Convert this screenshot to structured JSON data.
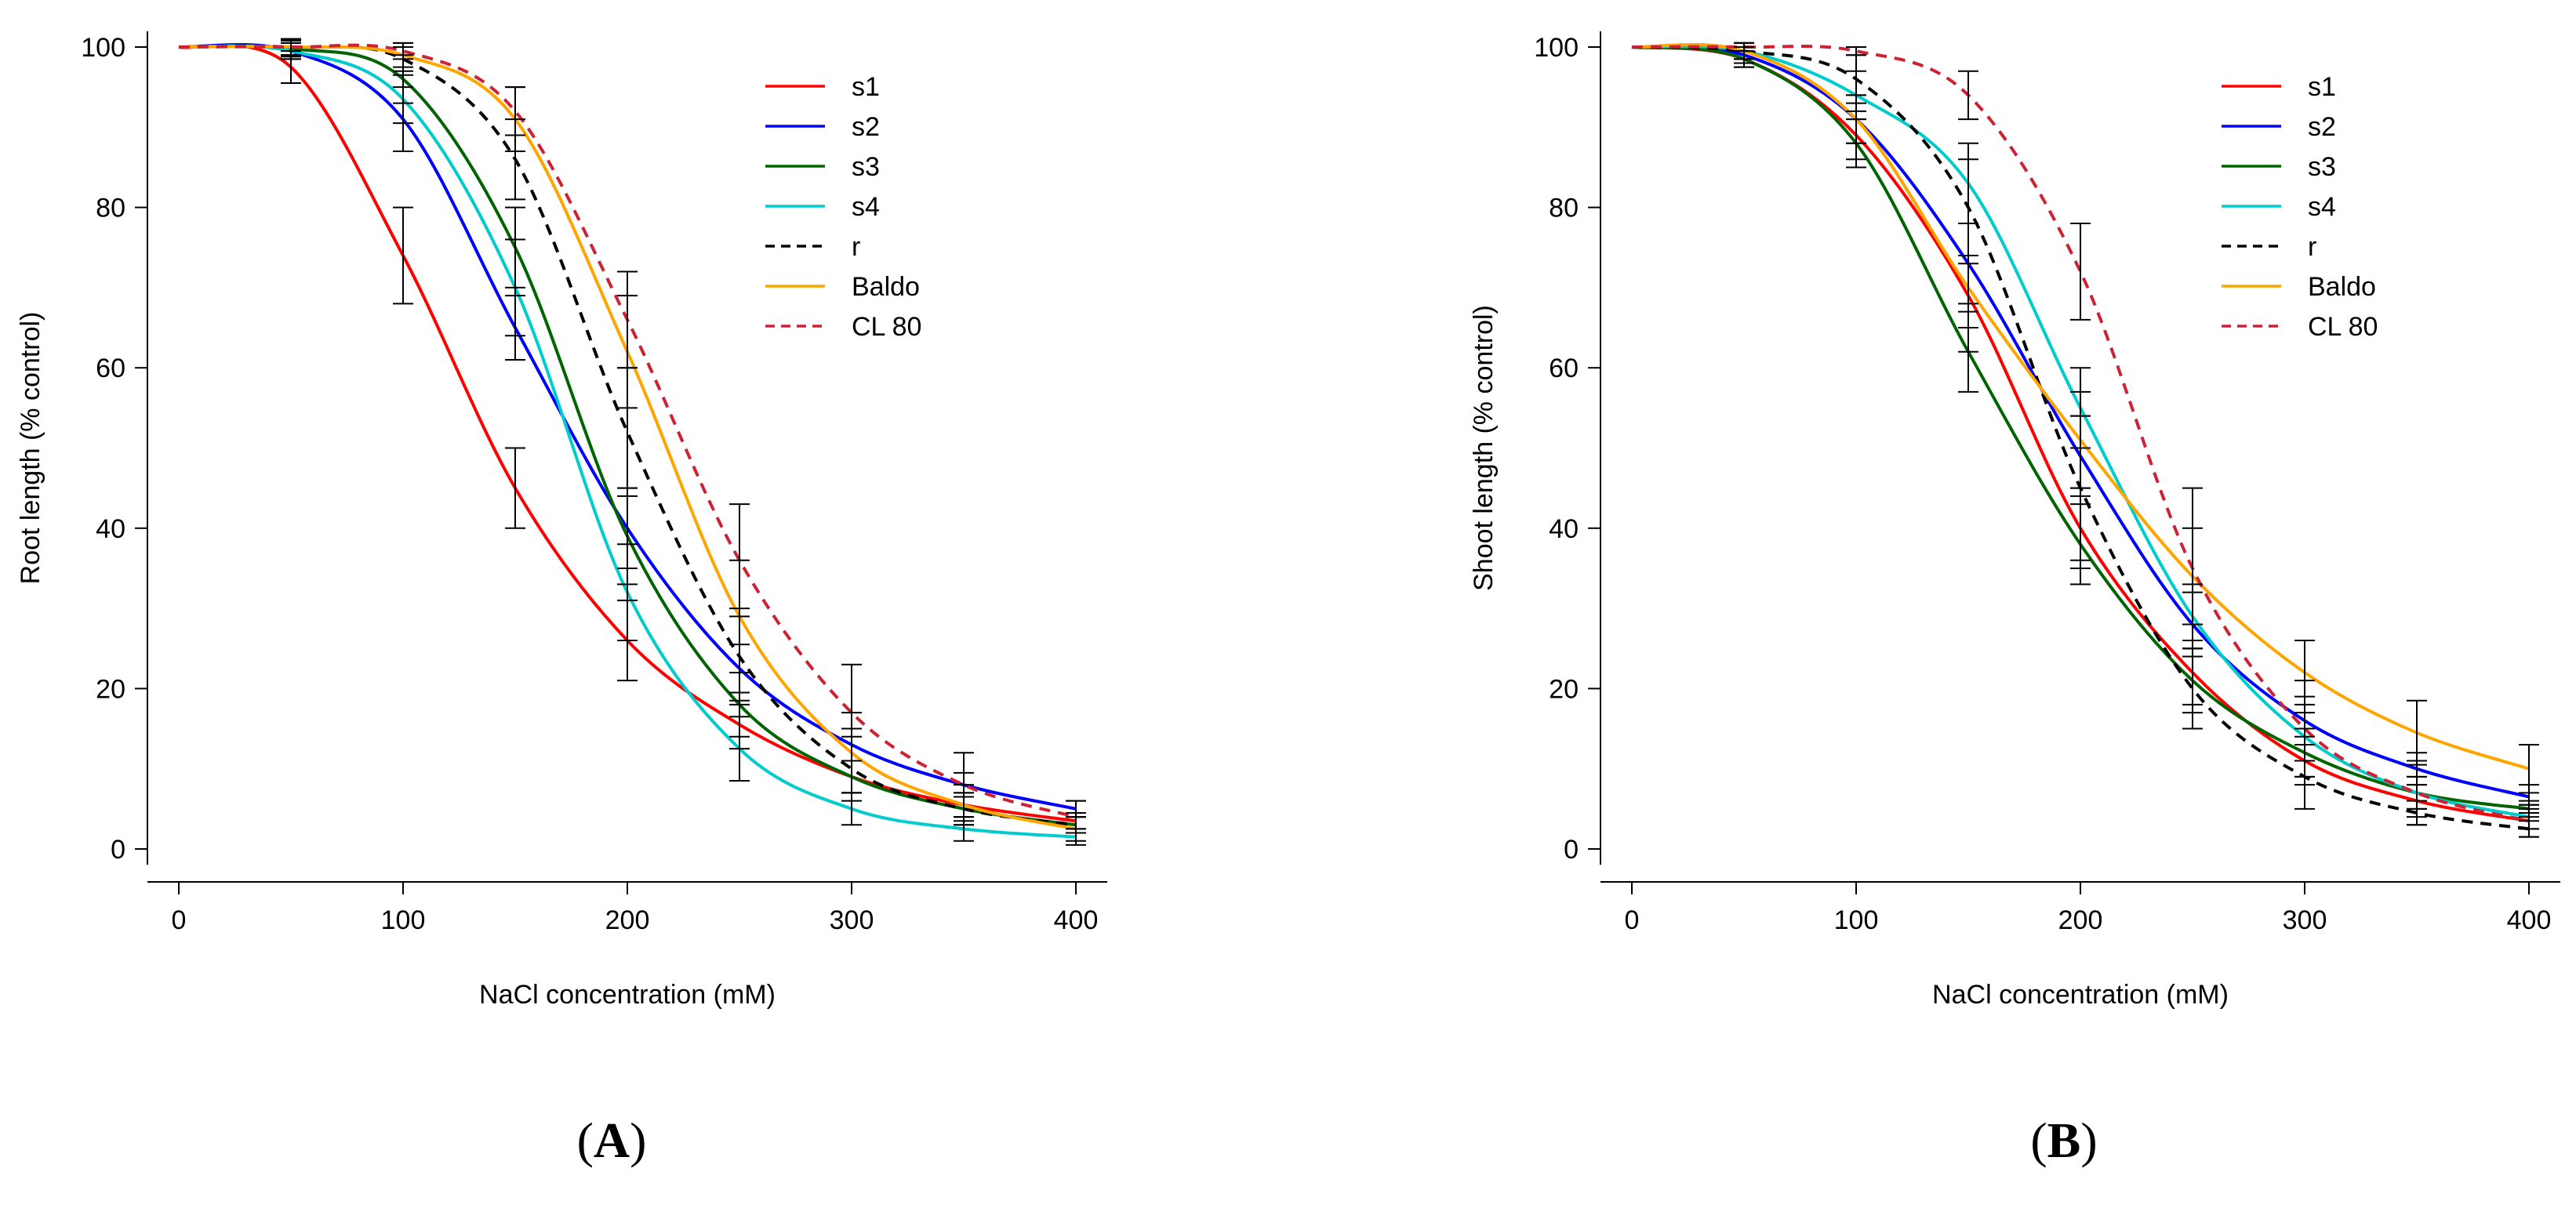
{
  "figure": {
    "panels": [
      {
        "id": "A",
        "label_prefix": "(",
        "label_letter": "A",
        "label_suffix": ")"
      },
      {
        "id": "B",
        "label_prefix": "(",
        "label_letter": "B",
        "label_suffix": ")"
      }
    ]
  },
  "chart_data": [
    {
      "type": "line",
      "panel": "A",
      "title": "",
      "xlabel": "NaCl concentration (mM)",
      "ylabel": "Root length (% control)",
      "xlim": [
        0,
        400
      ],
      "ylim": [
        0,
        100
      ],
      "xticks": [
        0,
        100,
        200,
        300,
        400
      ],
      "yticks": [
        0,
        20,
        40,
        60,
        80,
        100
      ],
      "grid": false,
      "legend_position": "top-right",
      "x": [
        0,
        50,
        100,
        150,
        200,
        250,
        300,
        350,
        400
      ],
      "series": [
        {
          "name": "s1",
          "color": "#ff0000",
          "dash": "solid",
          "values": [
            100,
            97.5,
            74,
            45,
            26,
            15.5,
            9,
            5.5,
            3.5
          ],
          "errors": [
            0,
            2,
            6,
            5,
            5,
            3,
            2,
            1.5,
            1
          ]
        },
        {
          "name": "s2",
          "color": "#0000ff",
          "dash": "solid",
          "values": [
            100,
            99.5,
            91,
            65,
            40,
            22.5,
            13,
            8,
            5
          ],
          "errors": [
            0,
            1,
            4,
            4,
            5,
            3,
            2,
            1.5,
            1
          ]
        },
        {
          "name": "s3",
          "color": "#006400",
          "dash": "solid",
          "values": [
            100,
            99.8,
            96,
            75,
            39,
            18,
            9,
            5,
            3
          ],
          "errors": [
            0,
            1,
            3,
            5,
            6,
            4,
            2,
            1.5,
            1
          ]
        },
        {
          "name": "s4",
          "color": "#00cccc",
          "dash": "solid",
          "values": [
            100,
            99.5,
            93.5,
            70,
            32,
            12.5,
            5,
            2.5,
            1.5
          ],
          "errors": [
            0,
            1,
            3,
            6,
            6,
            4,
            2,
            1.5,
            1
          ]
        },
        {
          "name": "r",
          "color": "#000000",
          "dash": "dashed",
          "values": [
            100,
            100,
            98.5,
            86,
            52,
            24,
            10,
            5,
            3
          ],
          "errors": [
            0,
            1,
            1.5,
            5,
            8,
            6,
            4,
            2,
            1
          ]
        },
        {
          "name": "Baldo",
          "color": "#ffa500",
          "dash": "solid",
          "values": [
            100,
            100,
            99,
            91,
            62,
            29,
            12,
            5.5,
            2.5
          ],
          "errors": [
            0,
            1,
            1.5,
            4,
            7,
            7,
            5,
            2.5,
            1.5
          ]
        },
        {
          "name": "CL 80",
          "color": "#cc2233",
          "dash": "dashed",
          "values": [
            100,
            100,
            99.5,
            92,
            66,
            36,
            17,
            8,
            4
          ],
          "errors": [
            0,
            1,
            1,
            3,
            6,
            7,
            6,
            4,
            2
          ]
        }
      ]
    },
    {
      "type": "line",
      "panel": "B",
      "title": "",
      "xlabel": "NaCl concentration (mM)",
      "ylabel": "Shoot length (% control)",
      "xlim": [
        0,
        400
      ],
      "ylim": [
        0,
        100
      ],
      "xticks": [
        0,
        100,
        200,
        300,
        400
      ],
      "yticks": [
        0,
        20,
        40,
        60,
        80,
        100
      ],
      "grid": false,
      "legend_position": "top-right",
      "x": [
        0,
        50,
        100,
        150,
        200,
        250,
        300,
        350,
        400
      ],
      "series": [
        {
          "name": "s1",
          "color": "#ff0000",
          "dash": "solid",
          "values": [
            100,
            98.5,
            89,
            69,
            40,
            22,
            11,
            6,
            3.5
          ],
          "errors": [
            0,
            1,
            3,
            4,
            5,
            4,
            3,
            2,
            1
          ]
        },
        {
          "name": "s2",
          "color": "#0000ff",
          "dash": "solid",
          "values": [
            100,
            99,
            91,
            73,
            49,
            28,
            16,
            10,
            6.5
          ],
          "errors": [
            0,
            1,
            3,
            5,
            5,
            4,
            3,
            2,
            1.5
          ]
        },
        {
          "name": "s3",
          "color": "#006400",
          "dash": "solid",
          "values": [
            100,
            98.5,
            88,
            62,
            38,
            21,
            12,
            7,
            5
          ],
          "errors": [
            0,
            1,
            3,
            5,
            5,
            4,
            3,
            2,
            1
          ]
        },
        {
          "name": "s4",
          "color": "#00cccc",
          "dash": "solid",
          "values": [
            100,
            99.5,
            94,
            83,
            55,
            29,
            14,
            7,
            4
          ],
          "errors": [
            0,
            1,
            3,
            5,
            5,
            4,
            3,
            2,
            1.5
          ]
        },
        {
          "name": "r",
          "color": "#000000",
          "dash": "dashed",
          "values": [
            100,
            99.5,
            96,
            80,
            45,
            20,
            9,
            4.5,
            2.5
          ],
          "errors": [
            0,
            1,
            3,
            6,
            9,
            5,
            4,
            1.5,
            1
          ]
        },
        {
          "name": "Baldo",
          "color": "#ffa500",
          "dash": "solid",
          "values": [
            100,
            99.5,
            91,
            70,
            51,
            34,
            22,
            14.5,
            10
          ],
          "errors": [
            0,
            1,
            3,
            8,
            6,
            6,
            4,
            4,
            3
          ]
        },
        {
          "name": "CL 80",
          "color": "#cc2233",
          "dash": "dashed",
          "values": [
            100,
            100,
            99.5,
            94,
            72,
            35,
            15,
            7,
            3.5
          ],
          "errors": [
            0,
            0.5,
            0.5,
            3,
            6,
            10,
            6,
            4,
            2
          ]
        }
      ]
    }
  ]
}
